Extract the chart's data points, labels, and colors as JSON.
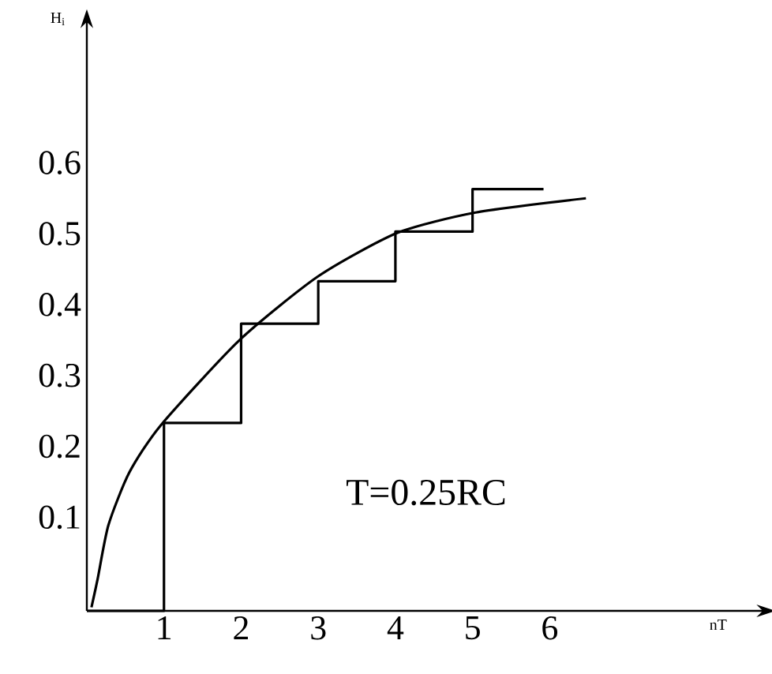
{
  "chart_data": {
    "type": "line",
    "xlabel": "nT",
    "ylabel": "H$_{i}$",
    "xlim": [
      0,
      8.8
    ],
    "ylim": [
      -0.035,
      0.8
    ],
    "xticks": [
      1,
      2,
      3,
      4,
      5,
      6
    ],
    "yticks": [
      0.1,
      0.2,
      0.3,
      0.4,
      0.5,
      0.6
    ],
    "series": [
      {
        "type": "line",
        "color": "#000000",
        "x": [
          0.06,
          0.14,
          0.28,
          0.55,
          0.96,
          1.98,
          3.0,
          4.02,
          5.04,
          6.47
        ],
        "values": [
          -0.03,
          0.01,
          0.086,
          0.16,
          0.227,
          0.347,
          0.437,
          0.498,
          0.527,
          0.547
        ]
      },
      {
        "type": "step",
        "color": "#000000",
        "x": [
          0,
          1,
          2,
          3,
          4,
          5,
          5.92
        ],
        "values": [
          -0.035,
          0.23,
          0.37,
          0.43,
          0.5,
          0.56,
          0.56
        ]
      }
    ],
    "annotations": [
      "T=0.25RC"
    ],
    "grid": false,
    "marker": "none",
    "line_style": "solid"
  }
}
